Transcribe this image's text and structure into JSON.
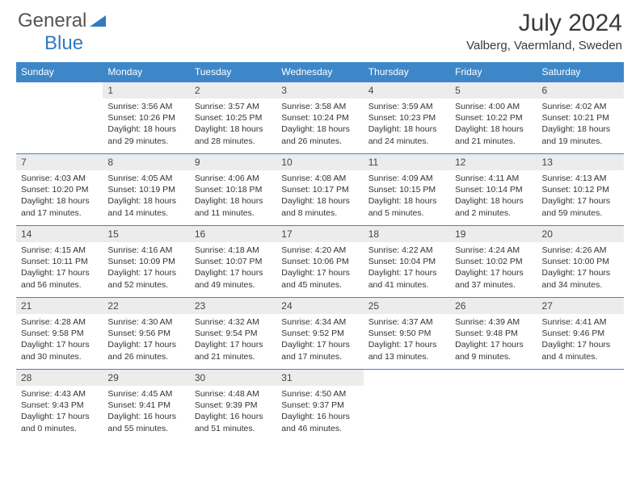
{
  "logo": {
    "part1": "General",
    "part2": "Blue"
  },
  "title": "July 2024",
  "location": "Valberg, Vaermland, Sweden",
  "colors": {
    "header_bg": "#3d87c9",
    "header_text": "#ffffff",
    "daynum_bg": "#ececec",
    "border": "#3d87c9",
    "logo_gray": "#555555",
    "logo_blue": "#2f7bbf"
  },
  "weekdays": [
    "Sunday",
    "Monday",
    "Tuesday",
    "Wednesday",
    "Thursday",
    "Friday",
    "Saturday"
  ],
  "leading_blanks": 1,
  "days": [
    {
      "n": "1",
      "sunrise": "3:56 AM",
      "sunset": "10:26 PM",
      "daylight": "18 hours and 29 minutes."
    },
    {
      "n": "2",
      "sunrise": "3:57 AM",
      "sunset": "10:25 PM",
      "daylight": "18 hours and 28 minutes."
    },
    {
      "n": "3",
      "sunrise": "3:58 AM",
      "sunset": "10:24 PM",
      "daylight": "18 hours and 26 minutes."
    },
    {
      "n": "4",
      "sunrise": "3:59 AM",
      "sunset": "10:23 PM",
      "daylight": "18 hours and 24 minutes."
    },
    {
      "n": "5",
      "sunrise": "4:00 AM",
      "sunset": "10:22 PM",
      "daylight": "18 hours and 21 minutes."
    },
    {
      "n": "6",
      "sunrise": "4:02 AM",
      "sunset": "10:21 PM",
      "daylight": "18 hours and 19 minutes."
    },
    {
      "n": "7",
      "sunrise": "4:03 AM",
      "sunset": "10:20 PM",
      "daylight": "18 hours and 17 minutes."
    },
    {
      "n": "8",
      "sunrise": "4:05 AM",
      "sunset": "10:19 PM",
      "daylight": "18 hours and 14 minutes."
    },
    {
      "n": "9",
      "sunrise": "4:06 AM",
      "sunset": "10:18 PM",
      "daylight": "18 hours and 11 minutes."
    },
    {
      "n": "10",
      "sunrise": "4:08 AM",
      "sunset": "10:17 PM",
      "daylight": "18 hours and 8 minutes."
    },
    {
      "n": "11",
      "sunrise": "4:09 AM",
      "sunset": "10:15 PM",
      "daylight": "18 hours and 5 minutes."
    },
    {
      "n": "12",
      "sunrise": "4:11 AM",
      "sunset": "10:14 PM",
      "daylight": "18 hours and 2 minutes."
    },
    {
      "n": "13",
      "sunrise": "4:13 AM",
      "sunset": "10:12 PM",
      "daylight": "17 hours and 59 minutes."
    },
    {
      "n": "14",
      "sunrise": "4:15 AM",
      "sunset": "10:11 PM",
      "daylight": "17 hours and 56 minutes."
    },
    {
      "n": "15",
      "sunrise": "4:16 AM",
      "sunset": "10:09 PM",
      "daylight": "17 hours and 52 minutes."
    },
    {
      "n": "16",
      "sunrise": "4:18 AM",
      "sunset": "10:07 PM",
      "daylight": "17 hours and 49 minutes."
    },
    {
      "n": "17",
      "sunrise": "4:20 AM",
      "sunset": "10:06 PM",
      "daylight": "17 hours and 45 minutes."
    },
    {
      "n": "18",
      "sunrise": "4:22 AM",
      "sunset": "10:04 PM",
      "daylight": "17 hours and 41 minutes."
    },
    {
      "n": "19",
      "sunrise": "4:24 AM",
      "sunset": "10:02 PM",
      "daylight": "17 hours and 37 minutes."
    },
    {
      "n": "20",
      "sunrise": "4:26 AM",
      "sunset": "10:00 PM",
      "daylight": "17 hours and 34 minutes."
    },
    {
      "n": "21",
      "sunrise": "4:28 AM",
      "sunset": "9:58 PM",
      "daylight": "17 hours and 30 minutes."
    },
    {
      "n": "22",
      "sunrise": "4:30 AM",
      "sunset": "9:56 PM",
      "daylight": "17 hours and 26 minutes."
    },
    {
      "n": "23",
      "sunrise": "4:32 AM",
      "sunset": "9:54 PM",
      "daylight": "17 hours and 21 minutes."
    },
    {
      "n": "24",
      "sunrise": "4:34 AM",
      "sunset": "9:52 PM",
      "daylight": "17 hours and 17 minutes."
    },
    {
      "n": "25",
      "sunrise": "4:37 AM",
      "sunset": "9:50 PM",
      "daylight": "17 hours and 13 minutes."
    },
    {
      "n": "26",
      "sunrise": "4:39 AM",
      "sunset": "9:48 PM",
      "daylight": "17 hours and 9 minutes."
    },
    {
      "n": "27",
      "sunrise": "4:41 AM",
      "sunset": "9:46 PM",
      "daylight": "17 hours and 4 minutes."
    },
    {
      "n": "28",
      "sunrise": "4:43 AM",
      "sunset": "9:43 PM",
      "daylight": "17 hours and 0 minutes."
    },
    {
      "n": "29",
      "sunrise": "4:45 AM",
      "sunset": "9:41 PM",
      "daylight": "16 hours and 55 minutes."
    },
    {
      "n": "30",
      "sunrise": "4:48 AM",
      "sunset": "9:39 PM",
      "daylight": "16 hours and 51 minutes."
    },
    {
      "n": "31",
      "sunrise": "4:50 AM",
      "sunset": "9:37 PM",
      "daylight": "16 hours and 46 minutes."
    }
  ],
  "labels": {
    "sunrise": "Sunrise:",
    "sunset": "Sunset:",
    "daylight": "Daylight:"
  }
}
